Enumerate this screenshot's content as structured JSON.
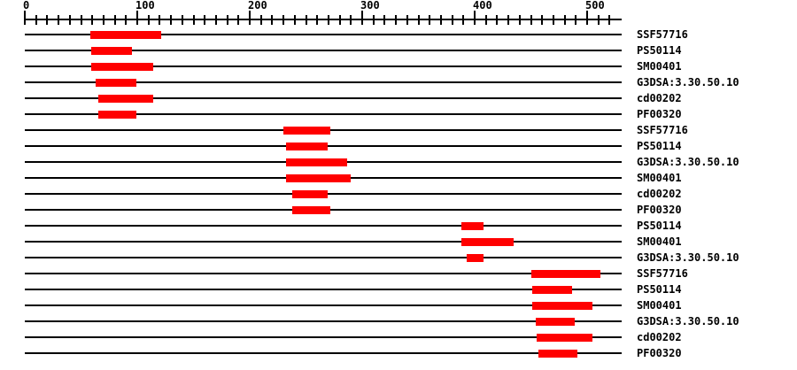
{
  "chart_data": {
    "type": "bar",
    "subtype": "protein-domain-ranges",
    "title": "",
    "xlabel": "",
    "ylabel": "",
    "background": "#ffffff",
    "bar_color": "#ff0000",
    "line_color": "#000000",
    "text_color": "#000000",
    "legend_position": "right-row-labels",
    "grid": false,
    "x_axis": {
      "min": 0,
      "max": 531,
      "major_ticks": [
        0,
        100,
        200,
        300,
        400,
        500
      ],
      "minor_tick_step": 10,
      "minor_tick_max": 520
    },
    "rows": [
      {
        "label": "SSF57716",
        "start": 58,
        "end": 121
      },
      {
        "label": "PS50114",
        "start": 59,
        "end": 95
      },
      {
        "label": "SM00401",
        "start": 59,
        "end": 114
      },
      {
        "label": "G3DSA:3.30.50.10",
        "start": 63,
        "end": 99
      },
      {
        "label": "cd00202",
        "start": 65,
        "end": 114
      },
      {
        "label": "PF00320",
        "start": 65,
        "end": 99
      },
      {
        "label": "SSF57716",
        "start": 230,
        "end": 272
      },
      {
        "label": "PS50114",
        "start": 232,
        "end": 269
      },
      {
        "label": "G3DSA:3.30.50.10",
        "start": 232,
        "end": 287
      },
      {
        "label": "SM00401",
        "start": 232,
        "end": 290
      },
      {
        "label": "cd00202",
        "start": 238,
        "end": 269
      },
      {
        "label": "PF00320",
        "start": 238,
        "end": 272
      },
      {
        "label": "PS50114",
        "start": 388,
        "end": 408
      },
      {
        "label": "SM00401",
        "start": 388,
        "end": 435
      },
      {
        "label": "G3DSA:3.30.50.10",
        "start": 393,
        "end": 408
      },
      {
        "label": "SSF57716",
        "start": 450,
        "end": 512
      },
      {
        "label": "PS50114",
        "start": 451,
        "end": 487
      },
      {
        "label": "SM00401",
        "start": 451,
        "end": 505
      },
      {
        "label": "G3DSA:3.30.50.10",
        "start": 454,
        "end": 489
      },
      {
        "label": "cd00202",
        "start": 455,
        "end": 505
      },
      {
        "label": "PF00320",
        "start": 457,
        "end": 491
      }
    ]
  }
}
